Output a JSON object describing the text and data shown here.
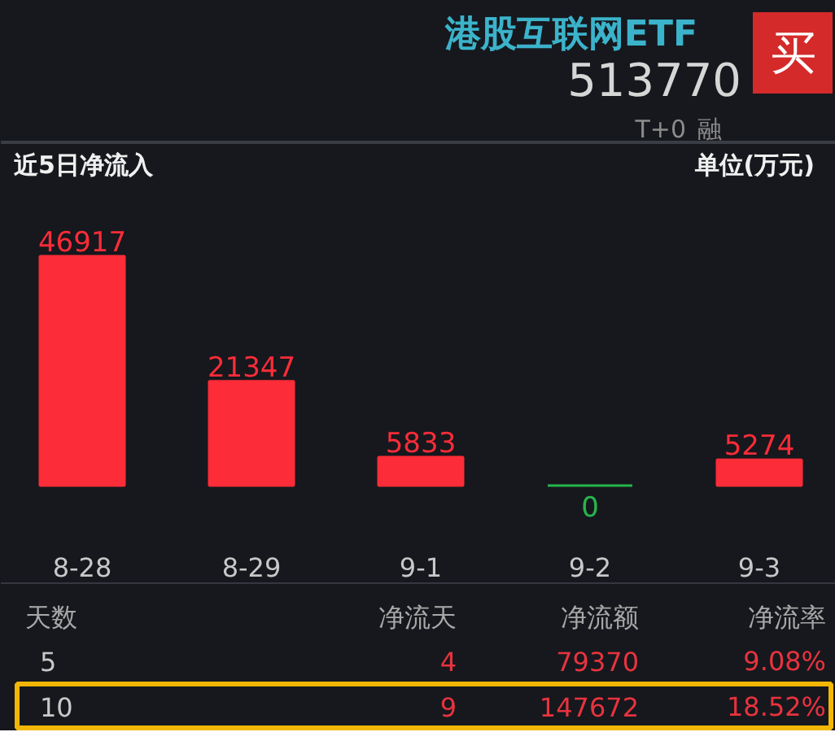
{
  "chart_data": {
    "type": "bar",
    "title": "近5日净流入",
    "categories": [
      "8-28",
      "8-29",
      "9-1",
      "9-2",
      "9-3"
    ],
    "values": [
      46917,
      21347,
      5833,
      0,
      5274
    ],
    "colors": [
      "#fc2c38",
      "#fc2c38",
      "#fc2c38",
      "#27b44c",
      "#fc2c38"
    ],
    "data_labels": true,
    "tick_labels": "x",
    "annotations": [
      "港股互联网ETF",
      "513770",
      "T+0",
      "融",
      "买",
      "单位(万元)",
      "天数",
      "净流天",
      "净流额",
      "净流率",
      "5",
      "4",
      "79370",
      "9.08%",
      "10",
      "9",
      "147672",
      "18.52%"
    ]
  }
}
